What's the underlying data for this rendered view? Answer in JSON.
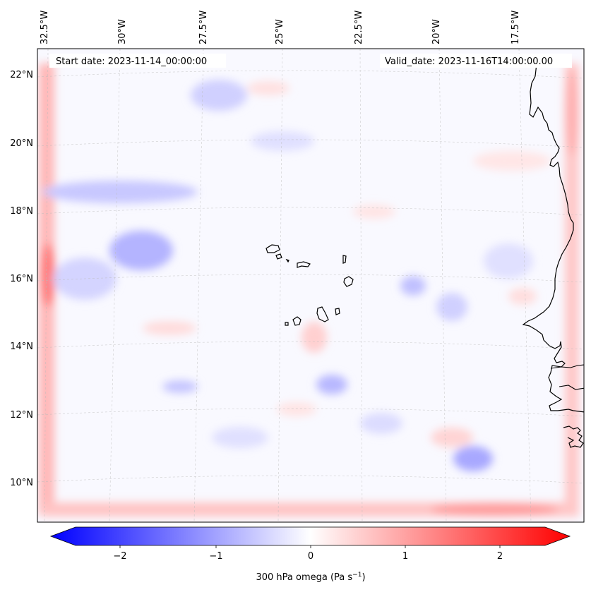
{
  "figure": {
    "start_date": "Start date: 2023-11-14_00:00:00",
    "valid_date": "Valid_date: 2023-11-16T14:00:00.00"
  },
  "lon_ticks": [
    "32.5°W",
    "30°W",
    "27.5°W",
    "25°W",
    "22.5°W",
    "20°W",
    "17.5°W"
  ],
  "lat_ticks": [
    "22°N",
    "20°N",
    "18°N",
    "16°N",
    "14°N",
    "12°N",
    "10°N"
  ],
  "colorbar": {
    "label_text": "300 hPa omega (Pa s",
    "label_exp": "−1",
    "label_close": ")",
    "ticks": [
      "−2",
      "−1",
      "0",
      "1",
      "2"
    ],
    "min": -2.75,
    "max": 2.75,
    "colors": {
      "negative": "#0000ff",
      "neutral": "#ffffff",
      "positive": "#ff0000"
    }
  },
  "map": {
    "variable": "300 hPa omega",
    "islands": "Cape Verde",
    "coastline": "West Africa"
  }
}
